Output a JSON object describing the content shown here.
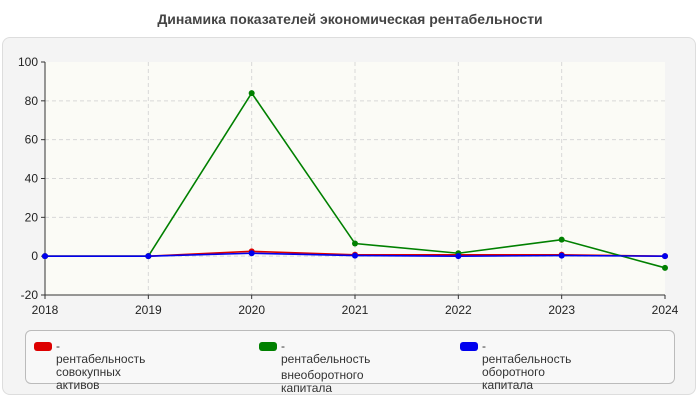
{
  "chart_data": {
    "type": "line",
    "title": "Динамика показателей экономическая рентабельности",
    "x": [
      "2018",
      "2019",
      "2020",
      "2021",
      "2022",
      "2023",
      "2024"
    ],
    "ylim": [
      -20,
      100
    ],
    "yticks": [
      "-20",
      "0",
      "20",
      "40",
      "60",
      "80",
      "100"
    ],
    "ytick_values": [
      -20,
      0,
      20,
      40,
      60,
      80,
      100
    ],
    "grid": true,
    "legend_position": "bottom",
    "series": [
      {
        "name": "- рентабельность совокупных активов",
        "name_lines": [
          "- рентабельность совокупных",
          "активов"
        ],
        "color": "#dd0000",
        "values": [
          0,
          0,
          2.5,
          0.7,
          0.7,
          0.7,
          0
        ]
      },
      {
        "name": "- рентабельность внеоборотного капитала",
        "name_lines": [
          "- рентабельность",
          "внеоборотного капитала"
        ],
        "color": "#008000",
        "values": [
          0,
          0,
          84,
          6.5,
          1.5,
          8.5,
          -6
        ]
      },
      {
        "name": "- рентабельность оборотного капитала",
        "name_lines": [
          "- рентабельность оборотного",
          "капитала"
        ],
        "color": "#0000ee",
        "values": [
          0,
          0,
          1.5,
          0.3,
          0,
          0.3,
          0
        ]
      }
    ]
  }
}
